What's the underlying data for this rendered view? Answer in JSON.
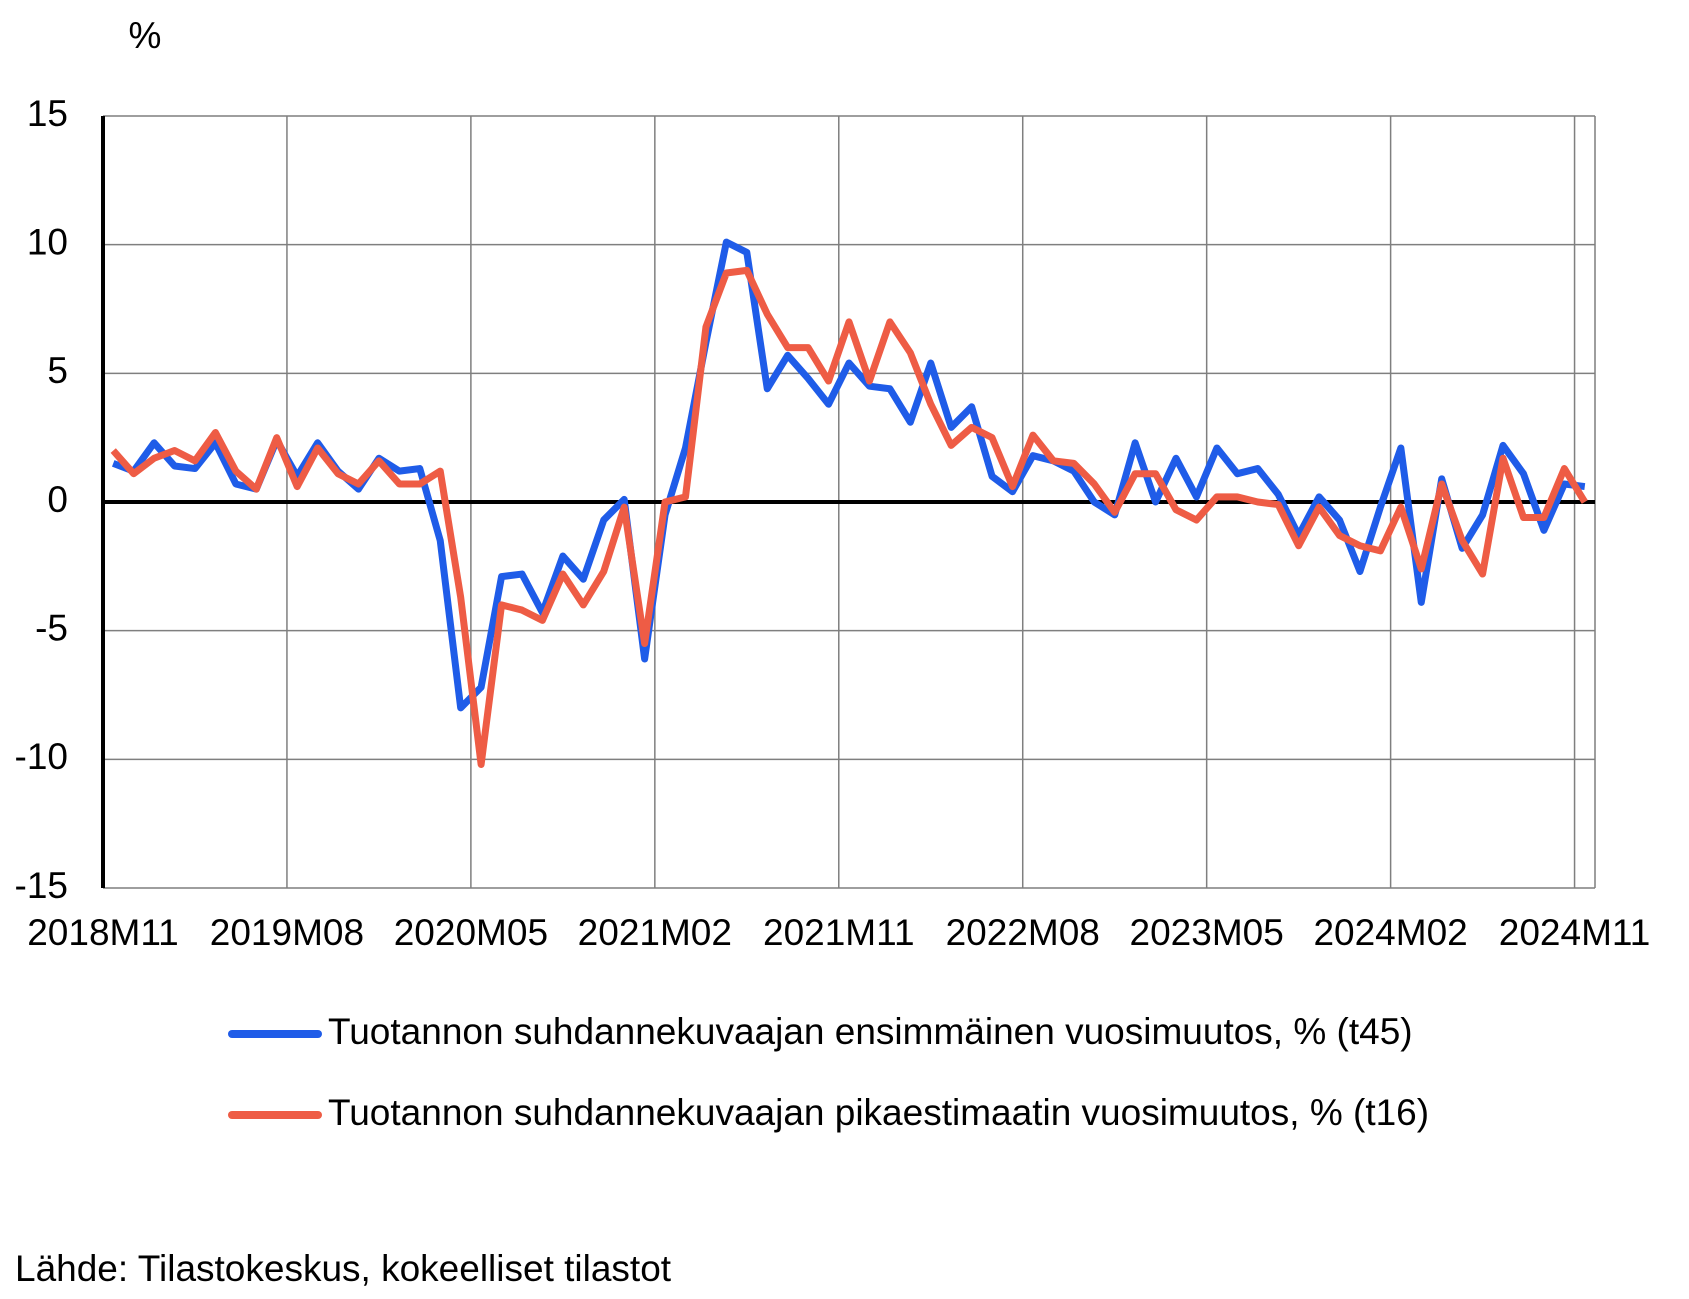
{
  "chart_data": {
    "type": "line",
    "y_unit_label": "%",
    "source": "Lähde: Tilastokeskus, kokeelliset tilastot",
    "categories": [
      "2018M11",
      null,
      null,
      null,
      null,
      null,
      null,
      null,
      null,
      "2019M08",
      null,
      null,
      null,
      null,
      null,
      null,
      null,
      null,
      "2020M05",
      null,
      null,
      null,
      null,
      null,
      null,
      null,
      null,
      "2021M02",
      null,
      null,
      null,
      null,
      null,
      null,
      null,
      null,
      "2021M11",
      null,
      null,
      null,
      null,
      null,
      null,
      null,
      null,
      "2022M08",
      null,
      null,
      null,
      null,
      null,
      null,
      null,
      null,
      "2023M05",
      null,
      null,
      null,
      null,
      null,
      null,
      null,
      null,
      "2024M02",
      null,
      null,
      null,
      null,
      null,
      null,
      null,
      null,
      "2024M11"
    ],
    "series": [
      {
        "name": "Tuotannon suhdannekuvaajan ensimmäinen vuosimuutos, % (t45)",
        "color": "#1f5ce8",
        "values": [
          1.5,
          1.2,
          2.3,
          1.4,
          1.3,
          2.3,
          0.7,
          0.5,
          2.4,
          1.0,
          2.3,
          1.2,
          0.5,
          1.7,
          1.2,
          1.3,
          -1.5,
          -8.0,
          -7.2,
          -2.9,
          -2.8,
          -4.3,
          -2.1,
          -3.0,
          -0.7,
          0.1,
          -6.1,
          -0.5,
          2.1,
          6.2,
          10.1,
          9.7,
          4.4,
          5.7,
          4.8,
          3.8,
          5.4,
          4.5,
          4.4,
          3.1,
          5.4,
          2.9,
          3.7,
          1.0,
          0.4,
          1.8,
          1.6,
          1.2,
          0.0,
          -0.5,
          2.3,
          0.0,
          1.7,
          0.2,
          2.1,
          1.1,
          1.3,
          0.3,
          -1.3,
          0.2,
          -0.7,
          -2.7,
          -0.2,
          2.1,
          -3.9,
          0.9,
          -1.8,
          -0.5,
          2.2,
          1.1,
          -1.1,
          0.7,
          0.6
        ]
      },
      {
        "name": "Tuotannon suhdannekuvaajan pikaestimaatin vuosimuutos, % (t16)",
        "color": "#ee5c45",
        "values": [
          2.0,
          1.1,
          1.7,
          2.0,
          1.6,
          2.7,
          1.2,
          0.5,
          2.5,
          0.6,
          2.1,
          1.1,
          0.7,
          1.6,
          0.7,
          0.7,
          1.2,
          -3.7,
          -10.2,
          -4.0,
          -4.2,
          -4.6,
          -2.8,
          -4.0,
          -2.7,
          -0.2,
          -5.5,
          0.0,
          0.2,
          6.8,
          8.9,
          9.0,
          7.3,
          6.0,
          6.0,
          4.7,
          7.0,
          4.7,
          7.0,
          5.8,
          3.8,
          2.2,
          2.9,
          2.5,
          0.6,
          2.6,
          1.6,
          1.5,
          0.7,
          -0.4,
          1.1,
          1.1,
          -0.3,
          -0.7,
          0.2,
          0.2,
          0.0,
          -0.1,
          -1.7,
          -0.2,
          -1.3,
          -1.7,
          -1.9,
          -0.2,
          -2.6,
          0.7,
          -1.5,
          -2.8,
          1.7,
          -0.6,
          -0.6,
          1.3,
          0.0
        ]
      }
    ],
    "ylim": [
      -15,
      15
    ],
    "yticks": [
      -15,
      -10,
      -5,
      0,
      5,
      10,
      15
    ],
    "grid": true
  }
}
